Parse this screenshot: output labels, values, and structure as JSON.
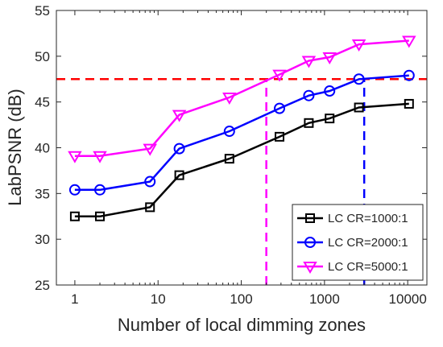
{
  "chart_data": {
    "type": "line",
    "xlabel": "Number of local dimming zones",
    "ylabel": "LabPSNR (dB)",
    "x_scale": "log",
    "xlim": [
      0.6,
      17000
    ],
    "ylim": [
      25,
      55
    ],
    "x_ticks": [
      1,
      10,
      100,
      1000,
      10000
    ],
    "x_tick_labels": [
      "1",
      "10",
      "100",
      "1000",
      "10000"
    ],
    "y_ticks": [
      25,
      30,
      35,
      40,
      45,
      50,
      55
    ],
    "y_tick_labels": [
      "25",
      "30",
      "35",
      "40",
      "45",
      "50",
      "55"
    ],
    "grid": false,
    "legend_position": "bottom-right",
    "x": [
      1,
      2,
      8,
      18,
      72,
      288,
      648,
      1152,
      2592,
      10368
    ],
    "series": [
      {
        "name": "LC CR=1000:1",
        "color": "#000000",
        "marker": "square",
        "values": [
          32.5,
          32.5,
          33.5,
          37.0,
          38.8,
          41.2,
          42.7,
          43.2,
          44.4,
          44.8
        ]
      },
      {
        "name": "LC CR=2000:1",
        "color": "#0000ff",
        "marker": "circle",
        "values": [
          35.4,
          35.4,
          36.3,
          39.9,
          41.8,
          44.3,
          45.7,
          46.2,
          47.5,
          47.9
        ]
      },
      {
        "name": "LC CR=5000:1",
        "color": "#ff00ff",
        "marker": "triangle-down",
        "values": [
          39.1,
          39.1,
          39.9,
          43.6,
          45.5,
          48.0,
          49.5,
          49.9,
          51.3,
          51.7
        ]
      }
    ],
    "reference_lines": [
      {
        "orientation": "horizontal",
        "value": 47.5,
        "color": "#ff0000",
        "style": "dashed"
      },
      {
        "orientation": "vertical",
        "value": 200,
        "color": "#ff00ff",
        "style": "dashed",
        "to_y": 47.5
      },
      {
        "orientation": "vertical",
        "value": 3000,
        "color": "#0000ff",
        "style": "dashed",
        "to_y": 47.5
      }
    ]
  }
}
